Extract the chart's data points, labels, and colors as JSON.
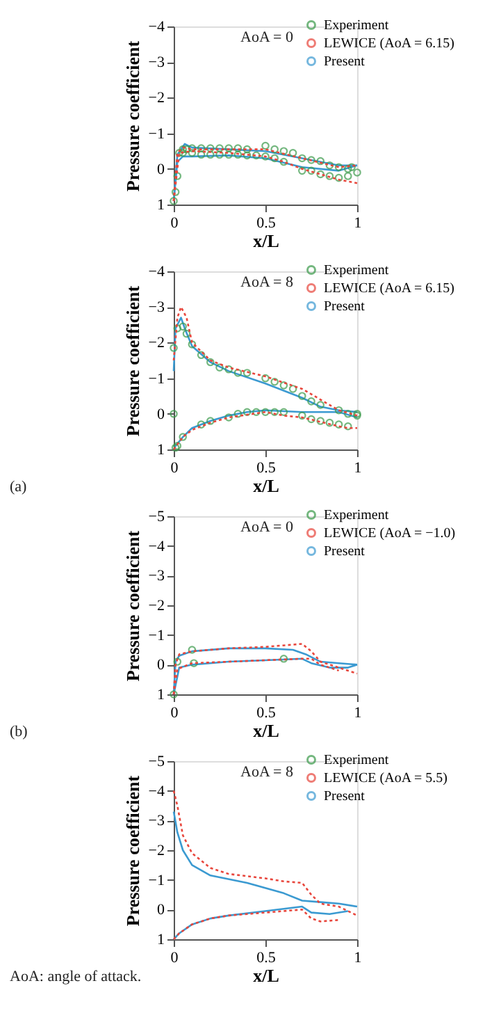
{
  "chart_data": [
    {
      "type": "line",
      "xlabel": "x/L",
      "ylabel": "Pressure coefficient",
      "xlim": [
        0,
        1
      ],
      "ylim": [
        1,
        -4
      ],
      "xticks": [
        0,
        0.5,
        1
      ],
      "yticks": [
        1,
        0,
        -1,
        -2,
        -3,
        -4
      ],
      "grid": false,
      "legend": "top right",
      "annotations": [
        "AoA = 0"
      ],
      "series": [
        {
          "name": "Experiment",
          "type": "scatter",
          "marker": "circle",
          "color": "#3a9a4a",
          "x": [
            0,
            0.01,
            0.02,
            0.03,
            0.05,
            0.07,
            0.1,
            0.15,
            0.2,
            0.25,
            0.3,
            0.35,
            0.4,
            0.5,
            0.55,
            0.6,
            0.65,
            0.7,
            0.75,
            0.8,
            0.85,
            0.9,
            0.95,
            0.97,
            1.0,
            0.05,
            0.1,
            0.15,
            0.2,
            0.25,
            0.3,
            0.35,
            0.4,
            0.45,
            0.5,
            0.55,
            0.6,
            0.7,
            0.75,
            0.8,
            0.85,
            0.9,
            0.95
          ],
          "values": [
            0.9,
            0.65,
            0.2,
            -0.45,
            -0.55,
            -0.55,
            -0.58,
            -0.58,
            -0.58,
            -0.58,
            -0.58,
            -0.58,
            -0.55,
            -0.65,
            -0.55,
            -0.5,
            -0.45,
            -0.3,
            -0.25,
            -0.22,
            -0.1,
            -0.05,
            0.0,
            -0.05,
            0.1,
            -0.45,
            -0.45,
            -0.4,
            -0.4,
            -0.4,
            -0.4,
            -0.4,
            -0.38,
            -0.38,
            -0.35,
            -0.3,
            -0.2,
            0.05,
            0.05,
            0.15,
            0.2,
            0.25,
            0.2
          ]
        },
        {
          "name": "LEWICE (AoA = 6.15)",
          "line_style": "dotted",
          "color": "#e8463c",
          "x": [
            0,
            0.02,
            0.05,
            0.1,
            0.3,
            0.5,
            0.7,
            0.9,
            1
          ],
          "values": [
            0.9,
            -0.45,
            -0.6,
            -0.55,
            -0.55,
            -0.55,
            -0.3,
            -0.05,
            -0.1
          ]
        },
        {
          "line_style": "dotted",
          "color": "#e8463c",
          "x": [
            0,
            0.03,
            0.1,
            0.3,
            0.5,
            0.6,
            0.7,
            0.8,
            0.9,
            1
          ],
          "values": [
            0.9,
            -0.45,
            -0.5,
            -0.45,
            -0.35,
            -0.2,
            0.0,
            0.15,
            0.3,
            0.4
          ]
        },
        {
          "name": "Present",
          "line_style": "solid",
          "color": "#3b9ad1",
          "x": [
            0,
            0.02,
            0.06,
            0.1,
            0.3,
            0.5,
            0.7,
            0.9,
            1
          ],
          "values": [
            0.9,
            -0.4,
            -0.7,
            -0.6,
            -0.55,
            -0.5,
            -0.3,
            -0.1,
            -0.1
          ]
        },
        {
          "line_style": "solid",
          "color": "#3b9ad1",
          "x": [
            0,
            0.02,
            0.05,
            0.1,
            0.3,
            0.5,
            0.7,
            0.9,
            1
          ],
          "values": [
            0.9,
            -0.2,
            -0.35,
            -0.35,
            -0.38,
            -0.3,
            -0.05,
            0.05,
            -0.1
          ]
        }
      ]
    },
    {
      "type": "line",
      "xlabel": "x/L",
      "ylabel": "Pressure coefficient",
      "xlim": [
        0,
        1
      ],
      "ylim": [
        1,
        -4
      ],
      "xticks": [
        0,
        0.5,
        1
      ],
      "yticks": [
        1,
        0,
        -1,
        -2,
        -3,
        -4
      ],
      "grid": false,
      "legend": "top right",
      "annotations": [
        "AoA = 8",
        "(a)"
      ],
      "series": [
        {
          "name": "Experiment",
          "type": "scatter",
          "marker": "circle",
          "color": "#3a9a4a",
          "x": [
            0,
            0.02,
            0.05,
            0.07,
            0.1,
            0.15,
            0.2,
            0.25,
            0.3,
            0.35,
            0.4,
            0.5,
            0.55,
            0.6,
            0.65,
            0.7,
            0.75,
            0.8,
            0.9,
            0.95,
            1.0,
            0,
            0.01,
            0.02,
            0.05,
            0.15,
            0.2,
            0.3,
            0.35,
            0.4,
            0.45,
            0.5,
            0.55,
            0.6,
            0.7,
            0.75,
            0.8,
            0.85,
            0.9,
            0.95,
            1.0
          ],
          "values": [
            -1.85,
            -2.4,
            -2.45,
            -2.25,
            -1.95,
            -1.65,
            -1.45,
            -1.3,
            -1.25,
            -1.15,
            -1.15,
            -1.0,
            -0.9,
            -0.8,
            -0.7,
            -0.5,
            -0.35,
            -0.25,
            -0.1,
            0.0,
            0.0,
            0.0,
            0.95,
            0.9,
            0.65,
            0.3,
            0.2,
            0.1,
            0.0,
            -0.05,
            -0.05,
            -0.05,
            -0.05,
            -0.05,
            0.05,
            0.15,
            0.2,
            0.25,
            0.3,
            0.35,
            0.05
          ]
        },
        {
          "name": "LEWICE (AoA = 6.15)",
          "line_style": "dotted",
          "color": "#e8463c",
          "x": [
            0,
            0.02,
            0.04,
            0.07,
            0.1,
            0.2,
            0.3,
            0.5,
            0.7,
            0.8,
            0.9,
            1
          ],
          "values": [
            -1.5,
            -2.7,
            -3.0,
            -2.7,
            -2.0,
            -1.5,
            -1.3,
            -1.05,
            -0.7,
            -0.4,
            -0.1,
            0.05
          ]
        },
        {
          "line_style": "dotted",
          "color": "#e8463c",
          "x": [
            0,
            0.05,
            0.1,
            0.2,
            0.3,
            0.5,
            0.6,
            0.7,
            0.9,
            0.95,
            1
          ],
          "values": [
            1,
            0.65,
            0.45,
            0.25,
            0.1,
            -0.05,
            0.05,
            0.1,
            0.35,
            0.4,
            0.4
          ]
        },
        {
          "name": "Present",
          "line_style": "solid",
          "color": "#3b9ad1",
          "x": [
            0,
            0.01,
            0.04,
            0.06,
            0.1,
            0.2,
            0.3,
            0.5,
            0.7,
            0.8,
            0.9,
            1
          ],
          "values": [
            -1.2,
            -2.4,
            -2.7,
            -2.4,
            -1.9,
            -1.45,
            -1.2,
            -0.85,
            -0.45,
            -0.2,
            -0.1,
            -0.05
          ]
        },
        {
          "line_style": "solid",
          "color": "#3b9ad1",
          "x": [
            0,
            0.01,
            0.05,
            0.1,
            0.2,
            0.3,
            0.4,
            0.5,
            0.7,
            0.9,
            1
          ],
          "values": [
            1,
            0.9,
            0.65,
            0.4,
            0.2,
            0.05,
            -0.05,
            -0.1,
            -0.05,
            -0.05,
            0.1
          ]
        }
      ]
    },
    {
      "type": "line",
      "xlabel": "x/L",
      "ylabel": "Pressure coefficient",
      "xlim": [
        0,
        1
      ],
      "ylim": [
        1,
        -5
      ],
      "xticks": [
        0,
        0.5,
        1
      ],
      "yticks": [
        1,
        0,
        -1,
        -2,
        -3,
        -4,
        -5
      ],
      "grid": false,
      "legend": "top right",
      "annotations": [
        "AoA = 0",
        "(b)"
      ],
      "series": [
        {
          "name": "Experiment",
          "type": "scatter",
          "marker": "circle",
          "color": "#3a9a4a",
          "x": [
            0,
            0.02,
            0.1,
            0.11,
            0.6
          ],
          "values": [
            1,
            -0.1,
            -0.5,
            -0.05,
            -0.2
          ]
        },
        {
          "name": "LEWICE (AoA = −1.0)",
          "line_style": "dotted",
          "color": "#e8463c",
          "x": [
            0,
            0.01,
            0.03,
            0.1,
            0.3,
            0.5,
            0.7,
            0.75,
            0.8,
            0.9,
            1
          ],
          "values": [
            1,
            0,
            -0.35,
            -0.45,
            -0.55,
            -0.6,
            -0.7,
            -0.45,
            -0.1,
            0.1,
            0.3
          ]
        },
        {
          "line_style": "dotted",
          "color": "#e8463c",
          "x": [
            0,
            0.02,
            0.1,
            0.3,
            0.5,
            0.7,
            0.75,
            0.8,
            0.9
          ],
          "values": [
            1,
            0.15,
            -0.05,
            -0.1,
            -0.15,
            -0.2,
            -0.2,
            0.0,
            0.2
          ]
        },
        {
          "name": "Present",
          "line_style": "solid",
          "color": "#3b9ad1",
          "x": [
            0,
            0.01,
            0.03,
            0.1,
            0.3,
            0.5,
            0.65,
            0.72,
            0.8,
            0.9,
            1
          ],
          "values": [
            1,
            -0.1,
            -0.3,
            -0.45,
            -0.55,
            -0.55,
            -0.5,
            -0.35,
            -0.1,
            -0.05,
            0
          ]
        },
        {
          "line_style": "solid",
          "color": "#3b9ad1",
          "x": [
            0,
            0.03,
            0.1,
            0.3,
            0.5,
            0.7,
            0.75,
            0.85,
            0.95,
            1
          ],
          "values": [
            1,
            0.1,
            0.0,
            -0.1,
            -0.15,
            -0.2,
            -0.05,
            0.1,
            0.1,
            0
          ]
        }
      ]
    },
    {
      "type": "line",
      "xlabel": "x/L",
      "ylabel": "Pressure coefficient",
      "xlim": [
        0,
        1
      ],
      "ylim": [
        1,
        -5
      ],
      "xticks": [
        0,
        0.5,
        1
      ],
      "yticks": [
        1,
        0,
        -1,
        -2,
        -3,
        -4,
        -5
      ],
      "grid": false,
      "legend": "top right",
      "annotations": [
        "AoA = 8",
        "AoA: angle of attack."
      ],
      "series": [
        {
          "name": "Experiment",
          "type": "scatter",
          "marker": "circle",
          "color": "#3a9a4a"
        },
        {
          "name": "LEWICE (AoA = 5.5)",
          "line_style": "dotted",
          "color": "#e8463c",
          "x": [
            0,
            0.02,
            0.05,
            0.1,
            0.2,
            0.3,
            0.5,
            0.6,
            0.7,
            0.75,
            0.8,
            0.9,
            1
          ],
          "values": [
            -4,
            -3.5,
            -2.5,
            -1.9,
            -1.4,
            -1.2,
            -1.05,
            -0.95,
            -0.9,
            -0.5,
            -0.2,
            -0.1,
            0.2
          ]
        },
        {
          "line_style": "dotted",
          "color": "#e8463c",
          "x": [
            0,
            0.03,
            0.1,
            0.2,
            0.3,
            0.5,
            0.7,
            0.75,
            0.8,
            0.9
          ],
          "values": [
            1,
            0.8,
            0.5,
            0.3,
            0.2,
            0.1,
            0.0,
            0.3,
            0.4,
            0.35
          ]
        },
        {
          "name": "Present",
          "line_style": "solid",
          "color": "#3b9ad1",
          "x": [
            0,
            0.02,
            0.05,
            0.1,
            0.2,
            0.4,
            0.6,
            0.7,
            0.8,
            0.9,
            1
          ],
          "values": [
            -3.3,
            -2.6,
            -2.0,
            -1.5,
            -1.15,
            -0.9,
            -0.55,
            -0.3,
            -0.25,
            -0.2,
            -0.1
          ]
        },
        {
          "line_style": "solid",
          "color": "#3b9ad1",
          "x": [
            0,
            0.03,
            0.1,
            0.2,
            0.3,
            0.5,
            0.7,
            0.75,
            0.85,
            0.95
          ],
          "values": [
            1,
            0.8,
            0.5,
            0.3,
            0.2,
            0.05,
            -0.1,
            0.1,
            0.15,
            0.05
          ]
        }
      ]
    }
  ]
}
